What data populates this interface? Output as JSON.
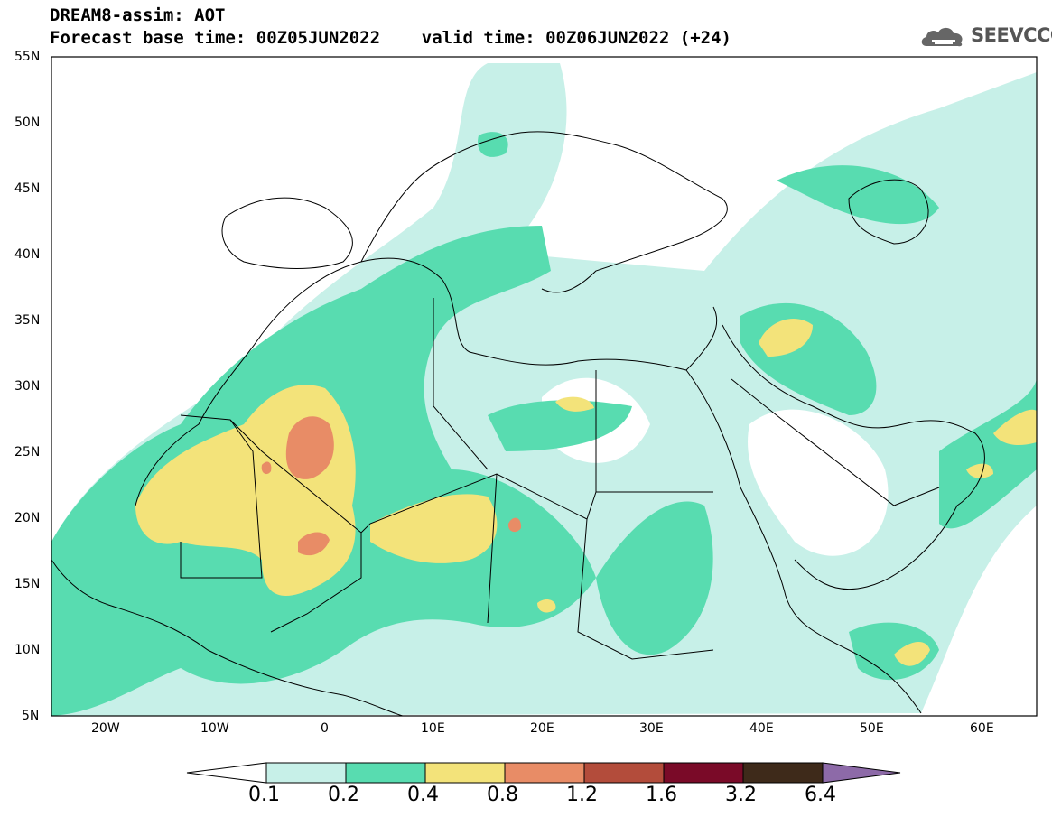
{
  "title": {
    "line1": "DREAM8-assim: AOT",
    "line2": "Forecast base time: 00Z05JUN2022    valid time: 00Z06JUN2022 (+24)"
  },
  "logo": {
    "text": "SEEVCCC",
    "icon": "cloud-icon"
  },
  "map": {
    "lon_range": [
      -25,
      65
    ],
    "lat_range": [
      5,
      55
    ],
    "lat_labels": [
      "55N",
      "50N",
      "45N",
      "40N",
      "35N",
      "30N",
      "25N",
      "20N",
      "15N",
      "10N",
      "5N"
    ],
    "lat_values": [
      55,
      50,
      45,
      40,
      35,
      30,
      25,
      20,
      15,
      10,
      5
    ],
    "lon_labels": [
      "20W",
      "10W",
      "0",
      "10E",
      "20E",
      "30E",
      "40E",
      "50E",
      "60E"
    ],
    "lon_values": [
      -20,
      -10,
      0,
      10,
      20,
      30,
      40,
      50,
      60
    ]
  },
  "colorbar": {
    "labels": [
      "0.1",
      "0.2",
      "0.4",
      "0.8",
      "1.2",
      "1.6",
      "3.2",
      "6.4"
    ],
    "colors": [
      "#ffffff",
      "#c7f0e8",
      "#58dcb0",
      "#f3e37a",
      "#e88c66",
      "#b34c3b",
      "#7a0a28",
      "#3e2a1a",
      "#8d6aa8"
    ]
  }
}
